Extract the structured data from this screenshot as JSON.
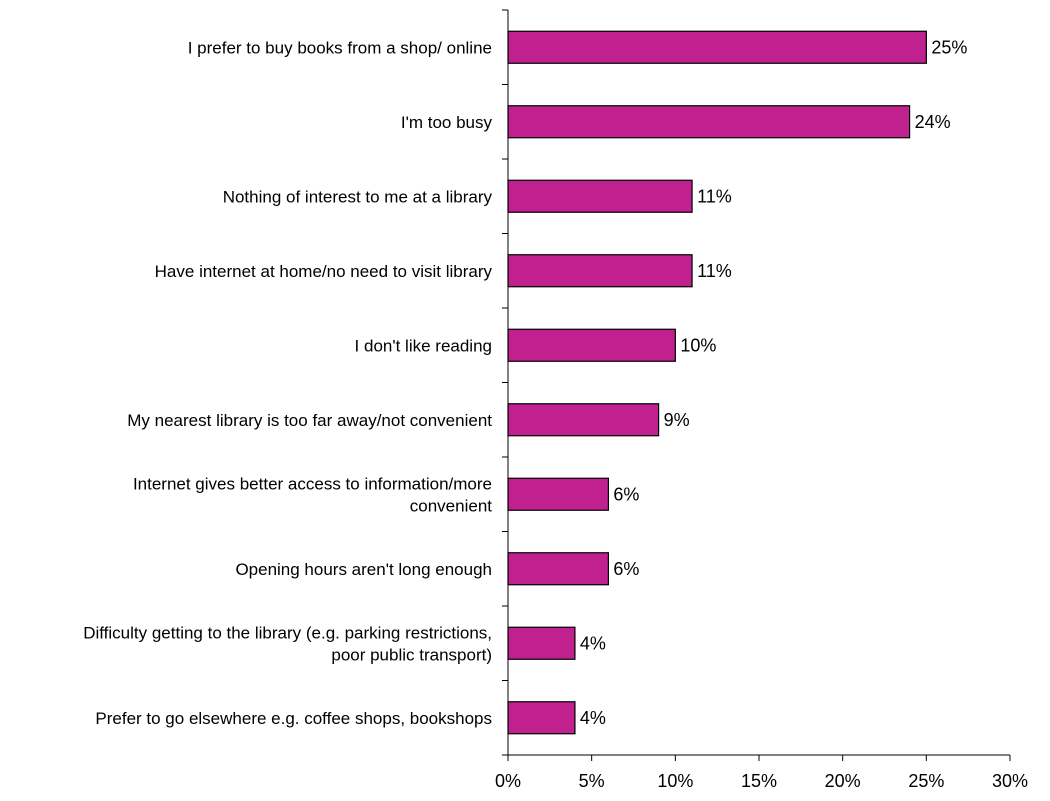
{
  "chart_data": {
    "type": "bar",
    "orientation": "horizontal",
    "categories": [
      "I prefer to buy books from a shop/ online",
      "I'm too busy",
      "Nothing of interest to me at a library",
      "Have internet at home/no need to visit library",
      "I don't like reading",
      "My nearest library is too far away/not convenient",
      "Internet gives better access to information/more convenient",
      "Opening hours aren't long enough",
      "Difficulty getting to the library (e.g. parking restrictions, poor public transport)",
      "Prefer to go elsewhere e.g. coffee shops, bookshops"
    ],
    "category_lines": [
      [
        "I prefer to buy books from a shop/ online"
      ],
      [
        "I'm too busy"
      ],
      [
        "Nothing of interest to me at a library"
      ],
      [
        "Have internet at home/no need to visit library"
      ],
      [
        "I don't like reading"
      ],
      [
        "My nearest library is too far away/not convenient"
      ],
      [
        "Internet gives better access to information/more",
        "convenient"
      ],
      [
        "Opening hours aren't long enough"
      ],
      [
        "Difficulty getting to the library (e.g. parking restrictions,",
        "poor public transport)"
      ],
      [
        "Prefer to go elsewhere e.g. coffee shops, bookshops"
      ]
    ],
    "values": [
      25,
      24,
      11,
      11,
      10,
      9,
      6,
      6,
      4,
      4
    ],
    "data_labels": [
      "25%",
      "24%",
      "11%",
      "11%",
      "10%",
      "9%",
      "6%",
      "6%",
      "4%",
      "4%"
    ],
    "x_ticks": [
      0,
      5,
      10,
      15,
      20,
      25,
      30
    ],
    "x_tick_labels": [
      "0%",
      "5%",
      "10%",
      "15%",
      "20%",
      "25%",
      "30%"
    ],
    "xlim": [
      0,
      30
    ],
    "title": "",
    "xlabel": "",
    "ylabel": "",
    "grid": false,
    "legend": "none",
    "colors": {
      "bar_fill": "#c0218f",
      "bar_stroke": "#000000",
      "axis": "#000000",
      "text": "#000000"
    }
  }
}
